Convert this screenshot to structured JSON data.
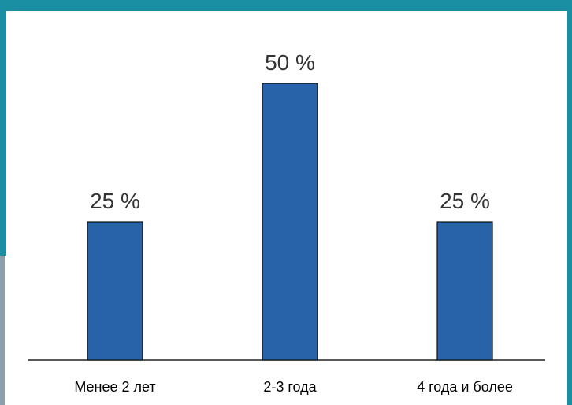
{
  "colors": {
    "frame": "#1a8fa4",
    "bar": "#2862a8",
    "bar_stroke": "#111111",
    "label": "#333333"
  },
  "chart_data": {
    "type": "bar",
    "categories": [
      "Менее 2 лет",
      "2-3 года",
      "4 года и более"
    ],
    "values": [
      25,
      50,
      25
    ],
    "data_labels": [
      "25 %",
      "50 %",
      "25 %"
    ],
    "title": "",
    "xlabel": "",
    "ylabel": "",
    "ylim": [
      0,
      60
    ],
    "grid": false,
    "legend": "none"
  }
}
